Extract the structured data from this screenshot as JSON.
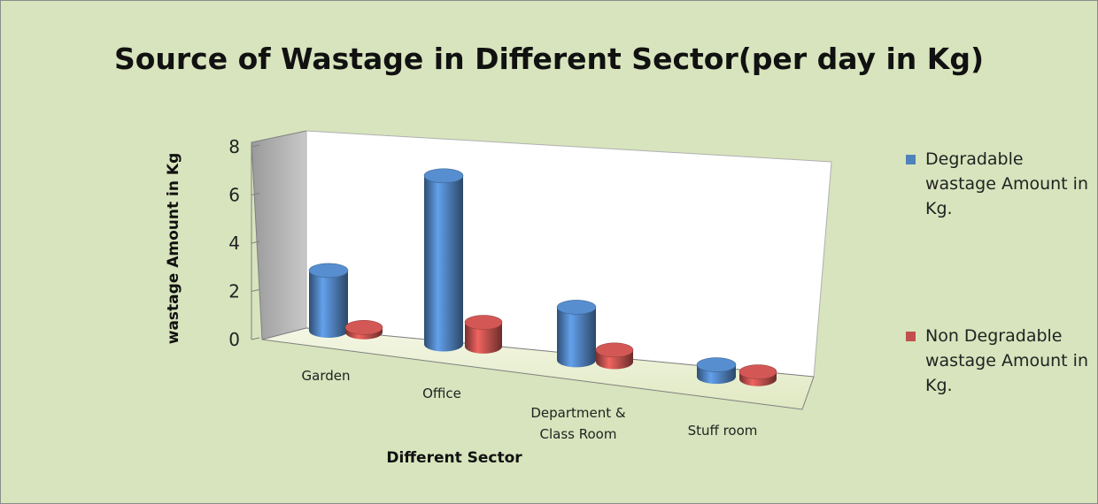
{
  "chart_data": {
    "type": "bar3d",
    "title": "Source of Wastage in Different Sector(per day in Kg)",
    "x_label": "Different Sector",
    "y_label": "wastage Amount  in Kg",
    "categories": [
      "Garden",
      "Office",
      "Department & Class Room",
      "Stuff room"
    ],
    "series": [
      {
        "name": "Degradable wastage Amount in Kg.",
        "color": "#4f81bd",
        "values": [
          2.5,
          7,
          2.2,
          0.5
        ]
      },
      {
        "name": "Non Degradable wastage Amount in Kg.",
        "color": "#c0504d",
        "values": [
          0.2,
          1,
          0.5,
          0.3
        ]
      }
    ],
    "ylim": [
      0,
      8
    ],
    "yticks": [
      0,
      2,
      4,
      6,
      8
    ],
    "grid": false,
    "legend": "right"
  }
}
